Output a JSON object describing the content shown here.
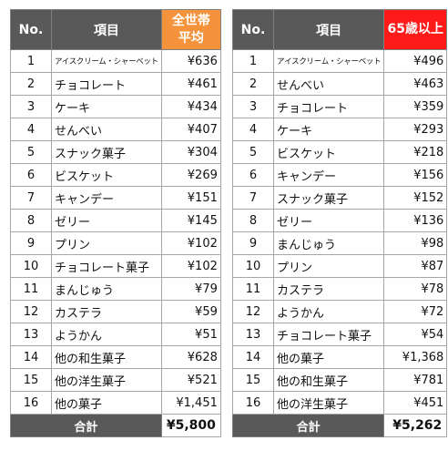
{
  "left_table": {
    "header": {
      "no": "No.",
      "item": "項目",
      "amount_line1": "全世帯",
      "amount_line2": "平均"
    },
    "rows": [
      {
        "no": "1",
        "item": "アイスクリーム・シャーベット",
        "amount": "¥636"
      },
      {
        "no": "2",
        "item": "チョコレート",
        "amount": "¥461"
      },
      {
        "no": "3",
        "item": "ケーキ",
        "amount": "¥434"
      },
      {
        "no": "4",
        "item": "せんべい",
        "amount": "¥407"
      },
      {
        "no": "5",
        "item": "スナック菓子",
        "amount": "¥304"
      },
      {
        "no": "6",
        "item": "ビスケット",
        "amount": "¥269"
      },
      {
        "no": "7",
        "item": "キャンデー",
        "amount": "¥151"
      },
      {
        "no": "8",
        "item": "ゼリー",
        "amount": "¥145"
      },
      {
        "no": "9",
        "item": "プリン",
        "amount": "¥102"
      },
      {
        "no": "10",
        "item": "チョコレート菓子",
        "amount": "¥102"
      },
      {
        "no": "11",
        "item": "まんじゅう",
        "amount": "¥79"
      },
      {
        "no": "12",
        "item": "カステラ",
        "amount": "¥59"
      },
      {
        "no": "13",
        "item": "ようかん",
        "amount": "¥51"
      },
      {
        "no": "14",
        "item": "他の和生菓子",
        "amount": "¥628"
      },
      {
        "no": "15",
        "item": "他の洋生菓子",
        "amount": "¥521"
      },
      {
        "no": "16",
        "item": "他の菓子",
        "amount": "¥1,451"
      }
    ],
    "total": {
      "label": "合計",
      "value": "¥5,800"
    },
    "header_color": "#f4933b"
  },
  "right_table": {
    "header": {
      "no": "No.",
      "item": "項目",
      "amount_line1": "65歳以上",
      "amount_line2": ""
    },
    "rows": [
      {
        "no": "1",
        "item": "アイスクリーム・シャーベット",
        "amount": "¥496"
      },
      {
        "no": "2",
        "item": "せんべい",
        "amount": "¥463"
      },
      {
        "no": "3",
        "item": "チョコレート",
        "amount": "¥359"
      },
      {
        "no": "4",
        "item": "ケーキ",
        "amount": "¥293"
      },
      {
        "no": "5",
        "item": "ビスケット",
        "amount": "¥218"
      },
      {
        "no": "6",
        "item": "キャンデー",
        "amount": "¥156"
      },
      {
        "no": "7",
        "item": "スナック菓子",
        "amount": "¥152"
      },
      {
        "no": "8",
        "item": "ゼリー",
        "amount": "¥136"
      },
      {
        "no": "9",
        "item": "まんじゅう",
        "amount": "¥98"
      },
      {
        "no": "10",
        "item": "プリン",
        "amount": "¥87"
      },
      {
        "no": "11",
        "item": "カステラ",
        "amount": "¥78"
      },
      {
        "no": "12",
        "item": "ようかん",
        "amount": "¥72"
      },
      {
        "no": "13",
        "item": "チョコレート菓子",
        "amount": "¥54"
      },
      {
        "no": "14",
        "item": "他の菓子",
        "amount": "¥1,368"
      },
      {
        "no": "15",
        "item": "他の和生菓子",
        "amount": "¥781"
      },
      {
        "no": "16",
        "item": "他の洋生菓子",
        "amount": "¥451"
      }
    ],
    "total": {
      "label": "合計",
      "value": "¥5,262"
    },
    "header_color": "#ff1a1a"
  }
}
